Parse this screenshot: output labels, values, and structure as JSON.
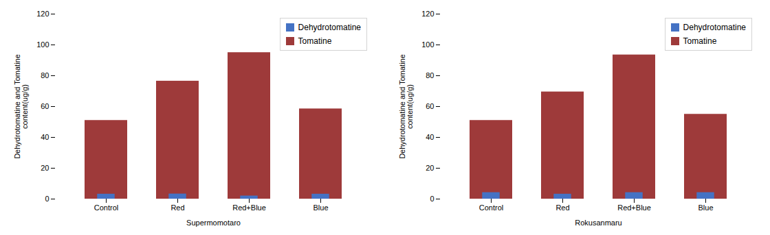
{
  "chart_data": [
    {
      "type": "bar",
      "xlabel": "Supermomotaro",
      "ylabel": "Dehydrotomatine and Tomatine\ncontent(ug/g)",
      "categories": [
        "Control",
        "Red",
        "Red+Blue",
        "Blue"
      ],
      "series": [
        {
          "name": "Dehydrotomatine",
          "color": "#4472C4",
          "values": [
            3.2,
            3.3,
            2.0,
            3.2
          ]
        },
        {
          "name": "Tomatine",
          "color": "#9E3A3A",
          "values": [
            51,
            76.5,
            95,
            58.5
          ]
        }
      ],
      "ylim": [
        0,
        120
      ],
      "yticks": [
        0,
        20,
        40,
        60,
        80,
        100,
        120
      ],
      "grid": false,
      "legend": "upper right"
    },
    {
      "type": "bar",
      "xlabel": "Rokusanmaru",
      "ylabel": "Dehydrotomatine and Tomatine\ncontent(ug/g)",
      "categories": [
        "Control",
        "Red",
        "Red+Blue",
        "Blue"
      ],
      "series": [
        {
          "name": "Dehydrotomatine",
          "color": "#4472C4",
          "values": [
            4.2,
            3.2,
            4.2,
            4.2
          ]
        },
        {
          "name": "Tomatine",
          "color": "#9E3A3A",
          "values": [
            51,
            69.5,
            93.5,
            55
          ]
        }
      ],
      "ylim": [
        0,
        120
      ],
      "yticks": [
        0,
        20,
        40,
        60,
        80,
        100,
        120
      ],
      "grid": false,
      "legend": "upper right"
    }
  ]
}
